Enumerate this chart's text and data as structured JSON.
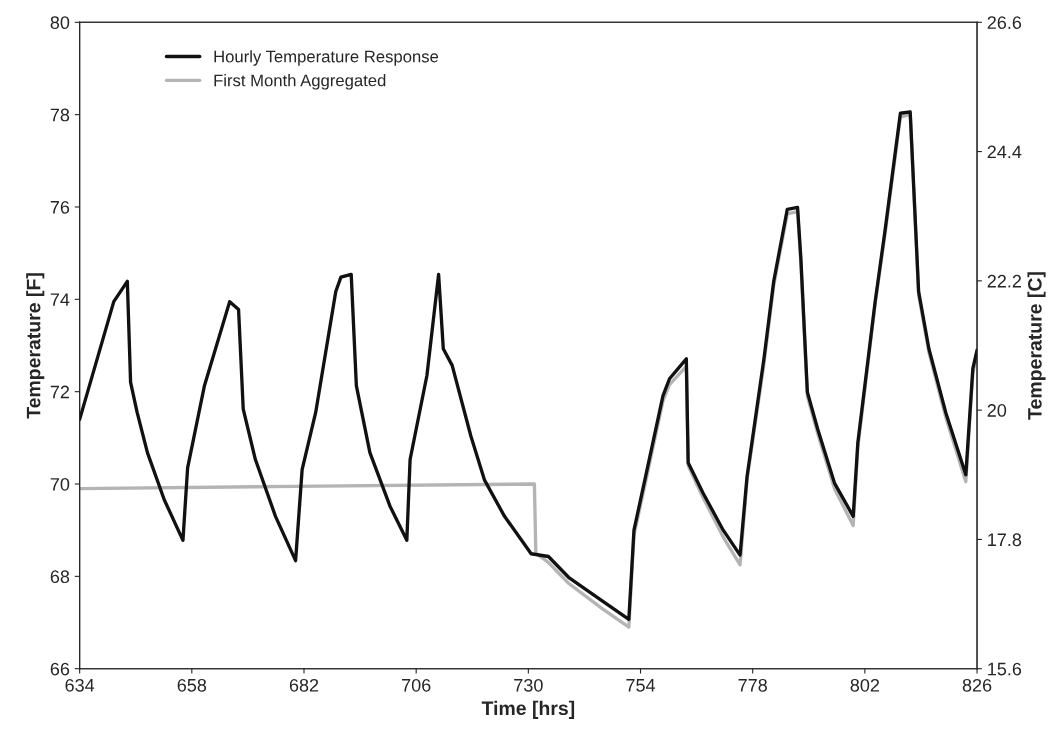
{
  "chart_data": {
    "type": "line",
    "xlabel": "Time [hrs]",
    "ylabel": "Temperature [F]",
    "y2label": "Temperature [C]",
    "xlim": [
      634,
      826
    ],
    "xticks": [
      634,
      658,
      682,
      706,
      730,
      754,
      778,
      802,
      826
    ],
    "ylim": [
      66,
      80
    ],
    "yticks": [
      66,
      68,
      70,
      72,
      74,
      76,
      78,
      80
    ],
    "y2lim": [
      15.6,
      26.6
    ],
    "y2ticks": [
      15.6,
      17.8,
      20,
      22.2,
      24.4,
      26.6
    ],
    "legend": "top left",
    "grid": false,
    "marker": "none",
    "line_style": "solid",
    "series": [
      {
        "name": "Hourly Temperature Response",
        "color": "#111111",
        "x": [
          634,
          641.3,
          644.2,
          644.9,
          646.3,
          648.5,
          652.1,
          656.1,
          657.1,
          660.7,
          666.1,
          668,
          669,
          671.6,
          675.9,
          680.2,
          681.6,
          684.5,
          688.8,
          689.9,
          692.1,
          693.2,
          696.1,
          700.4,
          704,
          704.7,
          708.3,
          710.8,
          711.8,
          713.7,
          717.7,
          720.6,
          724.9,
          730.6,
          734.3,
          738.6,
          745.8,
          751.5,
          752.6,
          755.1,
          758.8,
          760.2,
          763.8,
          764.2,
          767.4,
          771.7,
          775.3,
          776.8,
          780.4,
          782.5,
          785.4,
          787.6,
          788.3,
          789.7,
          791.9,
          795.5,
          799.5,
          800.5,
          804.2,
          806.3,
          809.6,
          811.7,
          813.5,
          815.7,
          819.3,
          823.6,
          825.1,
          826
        ],
        "values": [
          71.4,
          73.95,
          74.39,
          72.2,
          71.55,
          70.68,
          69.66,
          68.78,
          70.35,
          72.13,
          73.95,
          73.78,
          71.62,
          70.53,
          69.3,
          68.34,
          70.31,
          71.55,
          74.17,
          74.48,
          74.54,
          72.13,
          70.68,
          69.52,
          68.78,
          70.53,
          72.35,
          74.54,
          72.93,
          72.57,
          71.04,
          70.09,
          69.3,
          68.49,
          68.43,
          67.98,
          67.47,
          67.07,
          69.0,
          70.17,
          71.91,
          72.28,
          72.71,
          70.46,
          69.8,
          69.0,
          68.46,
          70.17,
          72.71,
          74.39,
          75.95,
          75.99,
          74.9,
          71.99,
          71.19,
          70.02,
          69.3,
          70.9,
          73.95,
          75.48,
          78.03,
          78.06,
          74.17,
          72.93,
          71.55,
          70.2,
          72.5,
          72.9
        ]
      },
      {
        "name": "First Month Aggregated",
        "color": "#b4b4b4",
        "x": [
          634,
          680,
          731.3,
          731.6,
          733,
          734.3,
          738.6,
          745.8,
          751.5,
          752.6,
          755.1,
          758.8,
          760.2,
          763.8,
          764.2,
          767.4,
          771.7,
          775.3,
          776.8,
          780.4,
          782.5,
          785.4,
          787.6,
          788.3,
          789.7,
          791.9,
          795.5,
          799.5,
          800.5,
          804.2,
          806.3,
          809.6,
          811.7,
          813.5,
          815.7,
          819.3,
          823.6,
          825.1,
          826
        ],
        "values": [
          69.9,
          69.95,
          70.0,
          68.5,
          68.4,
          68.3,
          67.85,
          67.3,
          66.9,
          68.9,
          70.05,
          71.8,
          72.15,
          72.55,
          70.4,
          69.7,
          68.85,
          68.25,
          70.1,
          72.6,
          74.3,
          75.85,
          75.9,
          74.8,
          71.9,
          71.1,
          69.9,
          69.1,
          70.8,
          73.9,
          75.4,
          77.95,
          78.0,
          74.1,
          72.85,
          71.45,
          70.05,
          72.4,
          72.8
        ]
      }
    ]
  }
}
